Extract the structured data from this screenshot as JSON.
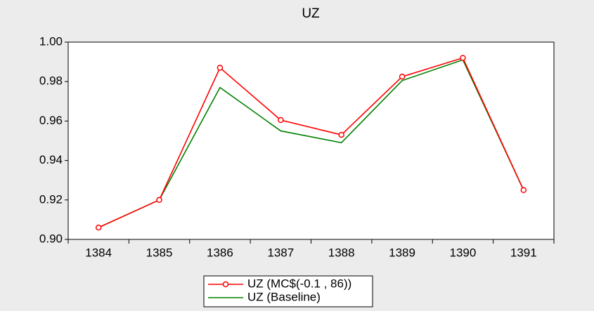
{
  "chart_data": {
    "type": "line",
    "title": "UZ",
    "categories": [
      "1384",
      "1385",
      "1386",
      "1387",
      "1388",
      "1389",
      "1390",
      "1391"
    ],
    "series": [
      {
        "name": "UZ (MC$(-0.1 , 86))",
        "color": "#ff0000",
        "markers": true,
        "values": [
          0.906,
          0.92,
          0.987,
          0.9605,
          0.953,
          0.9825,
          0.992,
          0.925
        ]
      },
      {
        "name": "UZ (Baseline)",
        "color": "#008000",
        "markers": false,
        "values": [
          0.906,
          0.92,
          0.977,
          0.955,
          0.949,
          0.9805,
          0.991,
          0.925
        ]
      }
    ],
    "ylim": [
      0.9,
      1.0
    ],
    "yticks": [
      {
        "value": 0.9,
        "label": "0.90"
      },
      {
        "value": 0.92,
        "label": "0.92"
      },
      {
        "value": 0.94,
        "label": "0.94"
      },
      {
        "value": 0.96,
        "label": "0.96"
      },
      {
        "value": 0.98,
        "label": "0.98"
      },
      {
        "value": 1.0,
        "label": "1.00"
      }
    ],
    "legend": "bottom"
  }
}
